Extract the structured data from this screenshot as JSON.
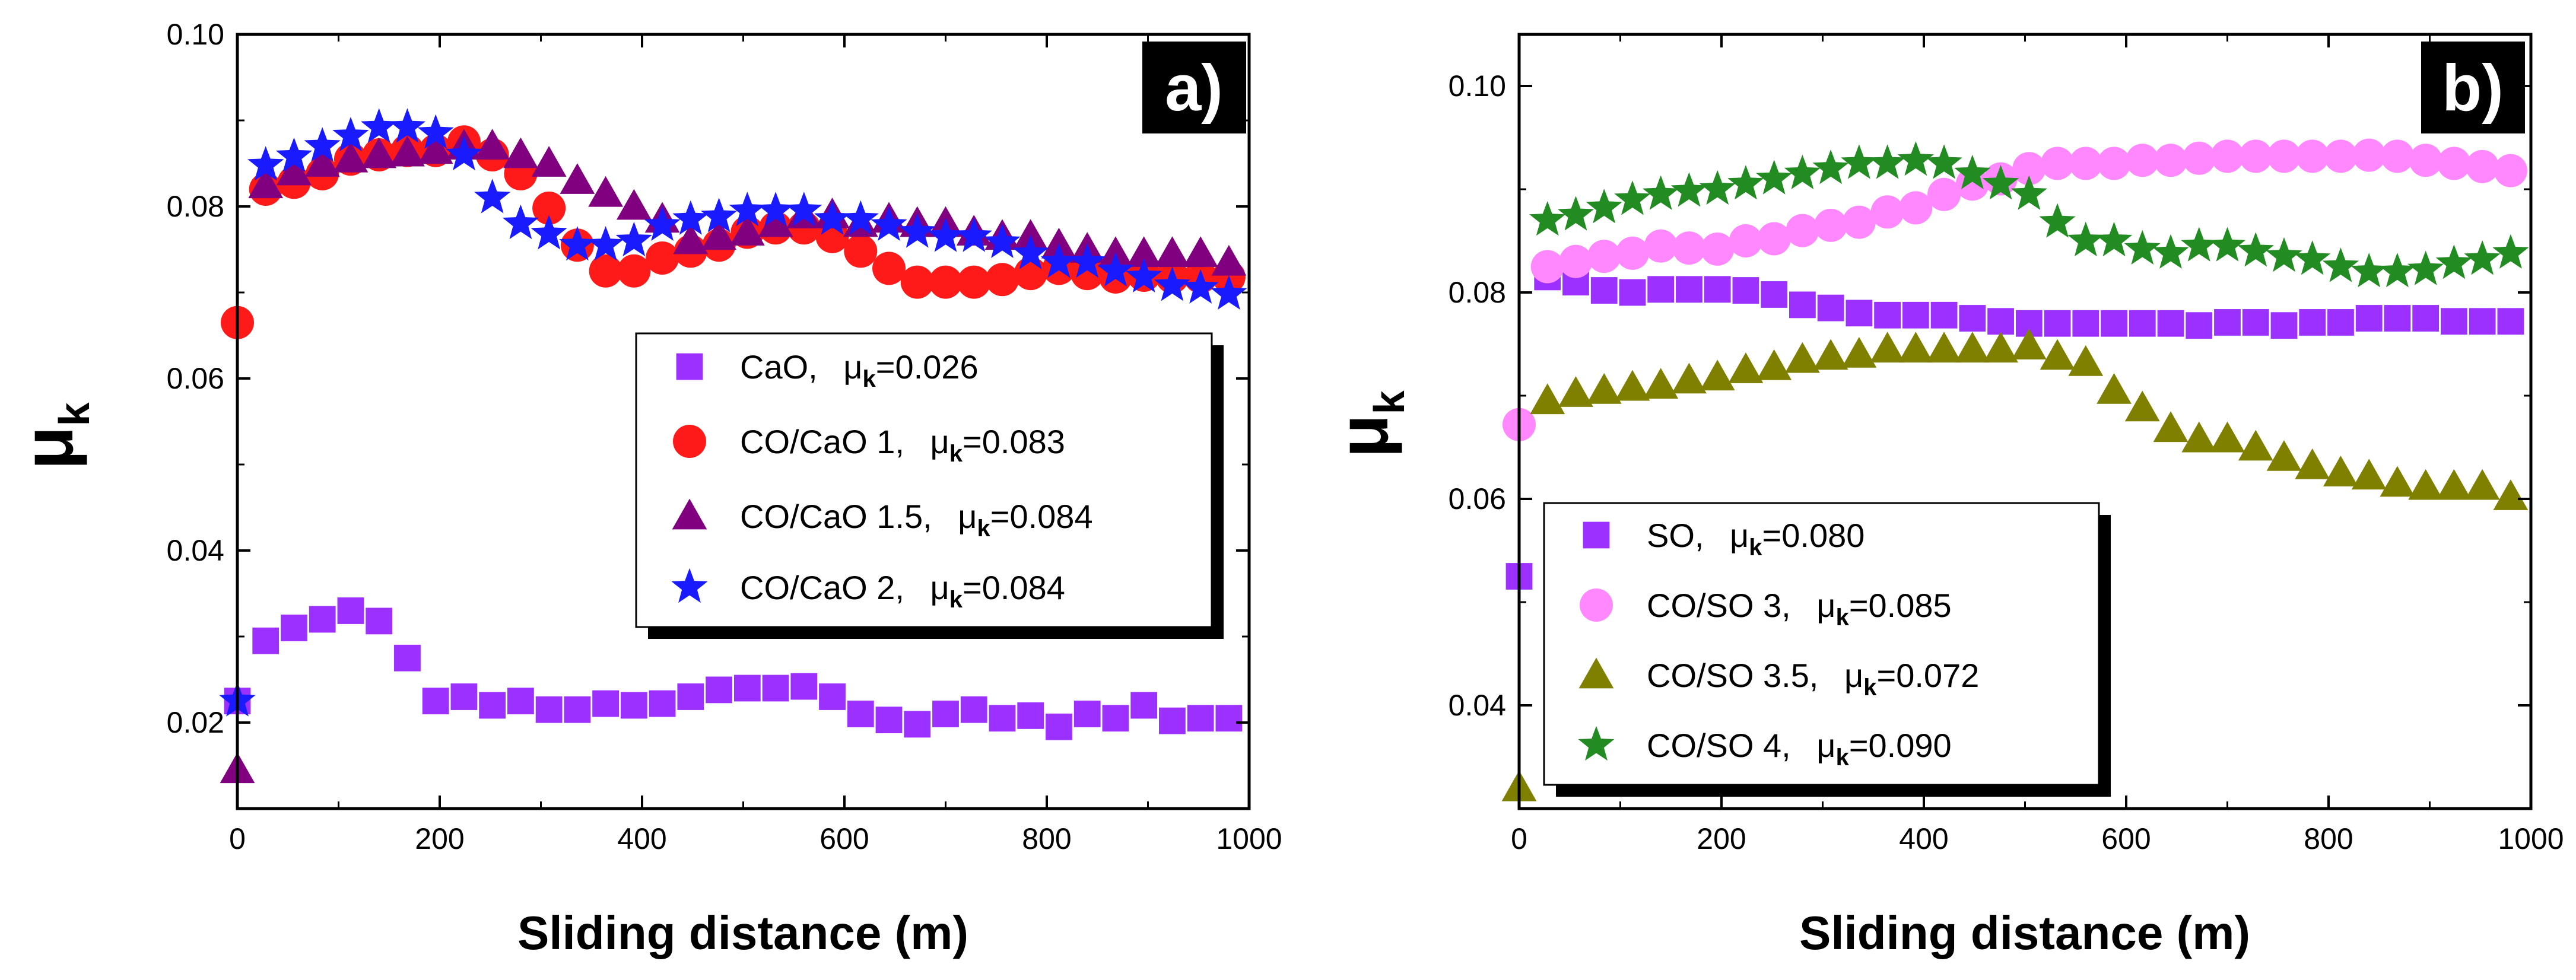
{
  "chart_data": [
    {
      "type": "scatter",
      "panel_label": "a)",
      "xlabel": "Sliding distance (m)",
      "ylabel": "μ",
      "ylabel_sub": "k",
      "xlim": [
        0,
        1000
      ],
      "ylim": [
        0.01,
        0.1
      ],
      "xticks": [
        "0",
        "200",
        "400",
        "600",
        "800",
        "1000"
      ],
      "yticks": [
        "0.02",
        "0.04",
        "0.06",
        "0.08",
        "0.10"
      ],
      "legend_position": "center-right",
      "series": [
        {
          "name": "CaO,",
          "mean_label": "μ",
          "mean_sub": "k",
          "mean_value": "=0.026",
          "marker": "square",
          "color": "#9b30ff",
          "x": [
            0,
            28,
            56,
            84,
            112,
            140,
            168,
            196,
            224,
            252,
            280,
            308,
            336,
            364,
            392,
            420,
            448,
            476,
            504,
            532,
            560,
            588,
            616,
            644,
            672,
            700,
            728,
            756,
            784,
            812,
            840,
            868,
            896,
            924,
            952,
            980
          ],
          "y": [
            0.0225,
            0.0295,
            0.031,
            0.032,
            0.033,
            0.0318,
            0.0275,
            0.0225,
            0.023,
            0.022,
            0.0225,
            0.0215,
            0.0215,
            0.0222,
            0.022,
            0.0222,
            0.023,
            0.0238,
            0.024,
            0.024,
            0.0242,
            0.023,
            0.021,
            0.0203,
            0.0198,
            0.021,
            0.0215,
            0.0205,
            0.0208,
            0.0195,
            0.021,
            0.0205,
            0.022,
            0.0202,
            0.0205,
            0.0205
          ]
        },
        {
          "name": "CO/CaO 1,",
          "mean_label": "μ",
          "mean_sub": "k",
          "mean_value": "=0.083",
          "marker": "circle",
          "color": "#ff1a1a",
          "x": [
            0,
            28,
            56,
            84,
            112,
            140,
            168,
            196,
            224,
            252,
            280,
            308,
            336,
            364,
            392,
            420,
            448,
            476,
            504,
            532,
            560,
            588,
            616,
            644,
            672,
            700,
            728,
            756,
            784,
            812,
            840,
            868,
            896,
            924,
            952,
            980
          ],
          "y": [
            0.0665,
            0.082,
            0.0828,
            0.0838,
            0.0855,
            0.086,
            0.0865,
            0.0865,
            0.0875,
            0.086,
            0.0838,
            0.0798,
            0.0755,
            0.0725,
            0.0725,
            0.074,
            0.0748,
            0.0755,
            0.077,
            0.0775,
            0.0775,
            0.0765,
            0.0748,
            0.0728,
            0.0712,
            0.0712,
            0.0712,
            0.0715,
            0.0722,
            0.0728,
            0.0722,
            0.0718,
            0.072,
            0.0718,
            0.0718,
            0.0718
          ]
        },
        {
          "name": "CO/CaO 1.5,",
          "mean_label": "μ",
          "mean_sub": "k",
          "mean_value": "=0.084",
          "marker": "triangle",
          "color": "#800080",
          "x": [
            0,
            28,
            56,
            84,
            112,
            140,
            168,
            196,
            224,
            252,
            280,
            308,
            336,
            364,
            392,
            420,
            448,
            476,
            504,
            532,
            560,
            588,
            616,
            644,
            672,
            700,
            728,
            756,
            784,
            812,
            840,
            868,
            896,
            924,
            952,
            980
          ],
          "y": [
            0.0145,
            0.0825,
            0.084,
            0.085,
            0.0855,
            0.086,
            0.0862,
            0.0865,
            0.087,
            0.087,
            0.086,
            0.085,
            0.083,
            0.0815,
            0.08,
            0.0785,
            0.076,
            0.0765,
            0.077,
            0.078,
            0.079,
            0.079,
            0.078,
            0.0785,
            0.078,
            0.078,
            0.077,
            0.0765,
            0.0765,
            0.0755,
            0.075,
            0.0745,
            0.0745,
            0.0745,
            0.0745,
            0.0735
          ]
        },
        {
          "name": "CO/CaO 2,",
          "mean_label": "μ",
          "mean_sub": "k",
          "mean_value": "=0.084",
          "marker": "star",
          "color": "#1a1aff",
          "x": [
            0,
            28,
            56,
            84,
            112,
            140,
            168,
            196,
            224,
            252,
            280,
            308,
            336,
            364,
            392,
            420,
            448,
            476,
            504,
            532,
            560,
            588,
            616,
            644,
            672,
            700,
            728,
            756,
            784,
            812,
            840,
            868,
            896,
            924,
            952,
            980
          ],
          "y": [
            0.0225,
            0.0848,
            0.0858,
            0.087,
            0.0882,
            0.0892,
            0.0892,
            0.0885,
            0.086,
            0.081,
            0.078,
            0.0768,
            0.0755,
            0.0755,
            0.076,
            0.0778,
            0.0785,
            0.0788,
            0.0795,
            0.0795,
            0.0795,
            0.0785,
            0.0785,
            0.0778,
            0.077,
            0.0765,
            0.0765,
            0.0758,
            0.0745,
            0.0735,
            0.0735,
            0.0725,
            0.0718,
            0.0708,
            0.0705,
            0.0698
          ]
        }
      ]
    },
    {
      "type": "scatter",
      "panel_label": "b)",
      "xlabel": "Sliding distance (m)",
      "ylabel": "μ",
      "ylabel_sub": "k",
      "xlim": [
        0,
        1000
      ],
      "ylim": [
        0.03,
        0.105
      ],
      "xticks": [
        "0",
        "200",
        "400",
        "600",
        "800",
        "1000"
      ],
      "yticks": [
        "0.04",
        "0.06",
        "0.08",
        "0.10"
      ],
      "legend_position": "lower-left",
      "series": [
        {
          "name": "SO,",
          "mean_label": "μ",
          "mean_sub": "k",
          "mean_value": "=0.080",
          "marker": "square",
          "color": "#9b30ff",
          "x": [
            0,
            28,
            56,
            84,
            112,
            140,
            168,
            196,
            224,
            252,
            280,
            308,
            336,
            364,
            392,
            420,
            448,
            476,
            504,
            532,
            560,
            588,
            616,
            644,
            672,
            700,
            728,
            756,
            784,
            812,
            840,
            868,
            896,
            924,
            952,
            980
          ],
          "y": [
            0.0525,
            0.0815,
            0.081,
            0.0802,
            0.08,
            0.0803,
            0.0803,
            0.0803,
            0.0802,
            0.0798,
            0.0788,
            0.0785,
            0.078,
            0.0778,
            0.0778,
            0.0778,
            0.0775,
            0.0772,
            0.077,
            0.077,
            0.077,
            0.077,
            0.077,
            0.077,
            0.0768,
            0.0771,
            0.0771,
            0.0768,
            0.0771,
            0.0771,
            0.0775,
            0.0775,
            0.0775,
            0.0772,
            0.0772,
            0.0772
          ]
        },
        {
          "name": "CO/SO 3,",
          "mean_label": "μ",
          "mean_sub": "k",
          "mean_value": "=0.085",
          "marker": "circle",
          "color": "#ff88ff",
          "x": [
            0,
            28,
            56,
            84,
            112,
            140,
            168,
            196,
            224,
            252,
            280,
            308,
            336,
            364,
            392,
            420,
            448,
            476,
            504,
            532,
            560,
            588,
            616,
            644,
            672,
            700,
            728,
            756,
            784,
            812,
            840,
            868,
            896,
            924,
            952,
            980
          ],
          "y": [
            0.0672,
            0.0825,
            0.083,
            0.0835,
            0.0838,
            0.0845,
            0.0843,
            0.0842,
            0.085,
            0.0852,
            0.086,
            0.0865,
            0.0868,
            0.0878,
            0.0882,
            0.0895,
            0.0905,
            0.091,
            0.092,
            0.0925,
            0.0925,
            0.0925,
            0.0928,
            0.0928,
            0.093,
            0.0932,
            0.0932,
            0.0932,
            0.0932,
            0.0932,
            0.0933,
            0.0932,
            0.0928,
            0.0925,
            0.0922,
            0.0918
          ]
        },
        {
          "name": "CO/SO 3.5,",
          "mean_label": "μ",
          "mean_sub": "k",
          "mean_value": "=0.072",
          "marker": "triangle",
          "color": "#808000",
          "x": [
            0,
            28,
            56,
            84,
            112,
            140,
            168,
            196,
            224,
            252,
            280,
            308,
            336,
            364,
            392,
            420,
            448,
            476,
            504,
            532,
            560,
            588,
            616,
            644,
            672,
            700,
            728,
            756,
            784,
            812,
            840,
            868,
            896,
            924,
            952,
            980
          ],
          "y": [
            0.032,
            0.0695,
            0.0702,
            0.0705,
            0.0708,
            0.071,
            0.0715,
            0.0718,
            0.0725,
            0.0728,
            0.0735,
            0.0738,
            0.074,
            0.0745,
            0.0745,
            0.0745,
            0.0745,
            0.0745,
            0.0748,
            0.0738,
            0.0732,
            0.0705,
            0.0688,
            0.0668,
            0.0658,
            0.0658,
            0.065,
            0.064,
            0.0632,
            0.0625,
            0.0622,
            0.0615,
            0.0612,
            0.0612,
            0.0612,
            0.0602
          ]
        },
        {
          "name": "CO/SO 4,",
          "mean_label": "μ",
          "mean_sub": "k",
          "mean_value": "=0.090",
          "marker": "star",
          "color": "#228b22",
          "x": [
            28,
            56,
            84,
            112,
            140,
            168,
            196,
            224,
            252,
            280,
            308,
            336,
            364,
            392,
            420,
            448,
            476,
            504,
            532,
            560,
            588,
            616,
            644,
            672,
            700,
            728,
            756,
            784,
            812,
            840,
            868,
            896,
            924,
            952,
            980
          ],
          "y": [
            0.087,
            0.0875,
            0.0882,
            0.089,
            0.0895,
            0.0898,
            0.09,
            0.0905,
            0.091,
            0.0915,
            0.092,
            0.0925,
            0.0925,
            0.0928,
            0.0925,
            0.0915,
            0.0905,
            0.0895,
            0.0868,
            0.085,
            0.085,
            0.0842,
            0.0838,
            0.0845,
            0.0845,
            0.084,
            0.0835,
            0.0832,
            0.0825,
            0.082,
            0.082,
            0.0822,
            0.0828,
            0.0832,
            0.0838
          ]
        }
      ]
    }
  ]
}
